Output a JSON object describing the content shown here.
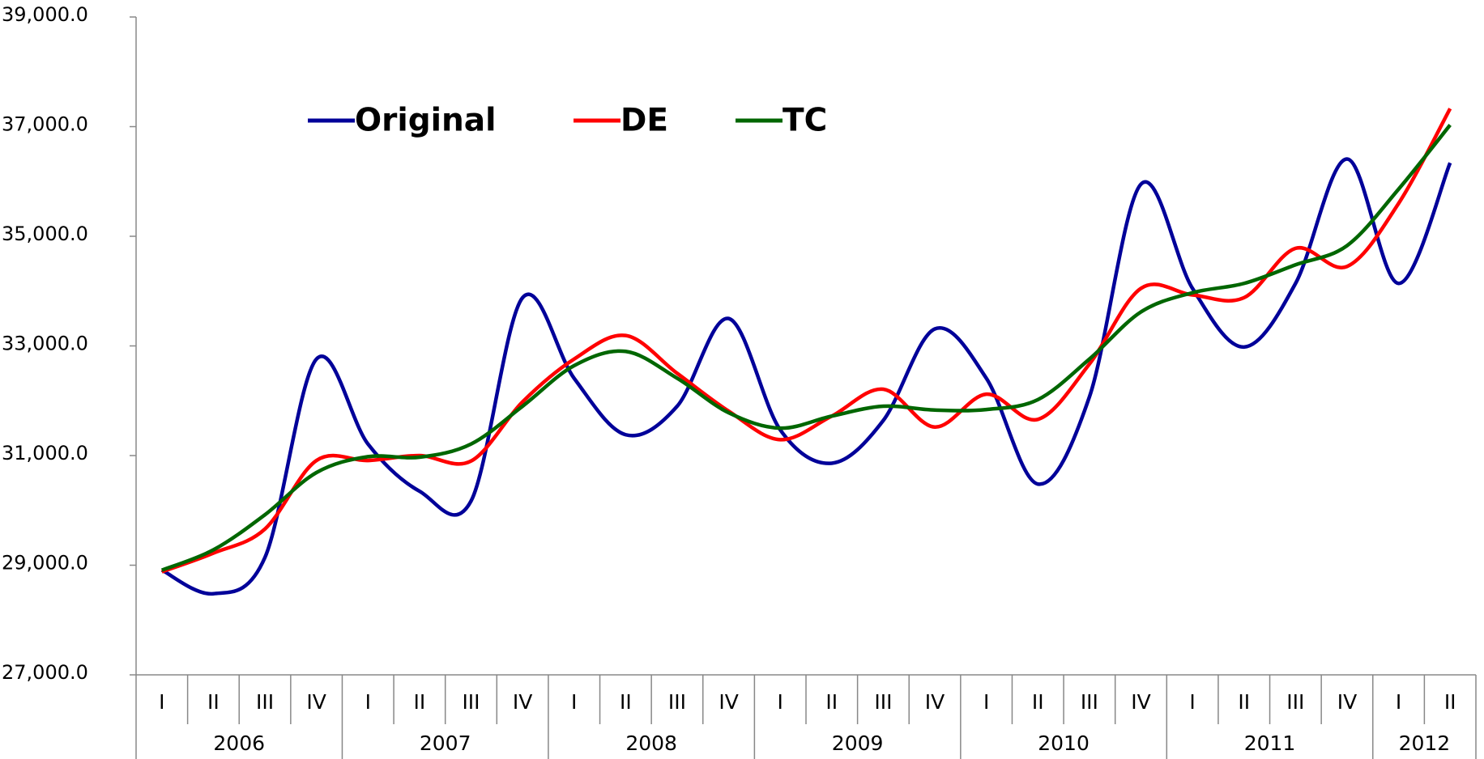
{
  "chart_data": {
    "type": "line",
    "categories": [
      "I",
      "II",
      "III",
      "IV",
      "I",
      "II",
      "III",
      "IV",
      "I",
      "II",
      "III",
      "IV",
      "I",
      "II",
      "III",
      "IV",
      "I",
      "II",
      "III",
      "IV",
      "I",
      "II",
      "III",
      "IV",
      "I",
      "II"
    ],
    "years": [
      "2006",
      "2007",
      "2008",
      "2009",
      "2010",
      "2011",
      "2012"
    ],
    "series": [
      {
        "name": "Original",
        "color": "#000099",
        "values": [
          28910,
          28480,
          29140,
          32760,
          31210,
          30350,
          30170,
          33880,
          32410,
          31380,
          31900,
          33500,
          31470,
          30860,
          31640,
          33310,
          32410,
          30480,
          32070,
          35950,
          34050,
          32980,
          34140,
          36410,
          34140,
          36340
        ]
      },
      {
        "name": "DE",
        "color": "#ff0000",
        "values": [
          28880,
          29220,
          29660,
          30910,
          30910,
          31000,
          30900,
          31980,
          32760,
          33190,
          32500,
          31810,
          31290,
          31720,
          32210,
          31520,
          32120,
          31660,
          32670,
          34050,
          33930,
          33880,
          34780,
          34450,
          35600,
          37330
        ]
      },
      {
        "name": "TC",
        "color": "#006600",
        "values": [
          28910,
          29280,
          29920,
          30690,
          30980,
          30970,
          31210,
          31900,
          32640,
          32900,
          32410,
          31780,
          31500,
          31720,
          31900,
          31830,
          31840,
          32020,
          32760,
          33620,
          33970,
          34140,
          34480,
          34830,
          35860,
          37030
        ]
      }
    ],
    "ylim": [
      27000,
      39000
    ],
    "yticks": [
      {
        "value": 27000,
        "label": "27,000.0"
      },
      {
        "value": 29000,
        "label": "29,000.0"
      },
      {
        "value": 31000,
        "label": "31,000.0"
      },
      {
        "value": 33000,
        "label": "33,000.0"
      },
      {
        "value": 35000,
        "label": "35,000.0"
      },
      {
        "value": 37000,
        "label": "37,000.0"
      },
      {
        "value": 39000,
        "label": "39,000.0"
      }
    ],
    "grid": false
  }
}
